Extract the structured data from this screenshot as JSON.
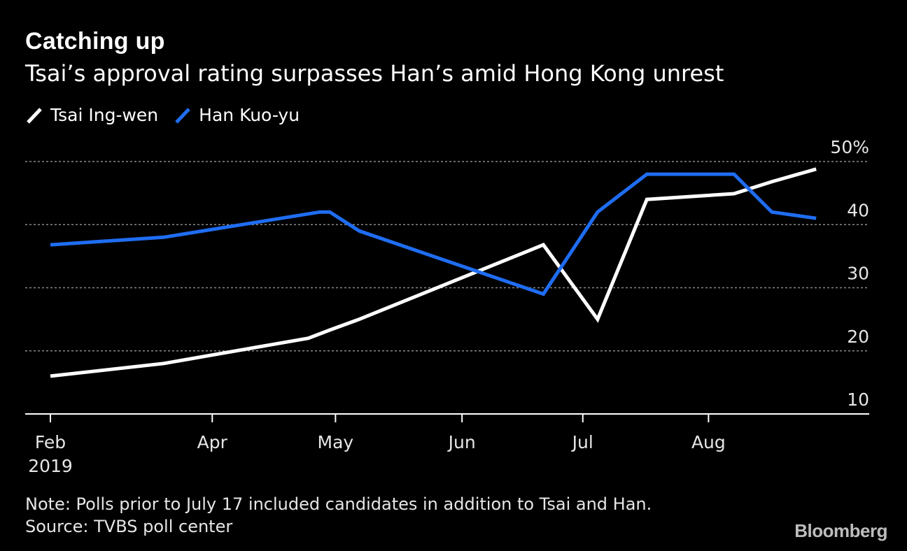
{
  "chart_data": {
    "type": "line",
    "title": "Catching up",
    "subtitle": "Tsai’s approval rating surpasses Han’s amid Hong Kong unrest",
    "x_ticks": [
      {
        "label": "Feb",
        "sublabel": "2019",
        "t": 0
      },
      {
        "label": "Apr",
        "sublabel": "",
        "t": 1.97
      },
      {
        "label": "May",
        "sublabel": "",
        "t": 3.47
      },
      {
        "label": "Jun",
        "sublabel": "",
        "t": 5.01
      },
      {
        "label": "Jul",
        "sublabel": "",
        "t": 6.48
      },
      {
        "label": "Aug",
        "sublabel": "",
        "t": 8.01
      }
    ],
    "x_range": [
      -0.32,
      10.0
    ],
    "y_ticks": [
      {
        "value": 50,
        "label": "50%"
      },
      {
        "value": 40,
        "label": "40"
      },
      {
        "value": 30,
        "label": "30"
      },
      {
        "value": 20,
        "label": "20"
      },
      {
        "value": 10,
        "label": "10"
      }
    ],
    "ylim": [
      10,
      50
    ],
    "grid": true,
    "series": [
      {
        "name": "Tsai Ing-wen",
        "color": "#ffffff",
        "points": [
          [
            0,
            16
          ],
          [
            1.38,
            18
          ],
          [
            3.14,
            22
          ],
          [
            3.4,
            23.3
          ],
          [
            3.76,
            25
          ],
          [
            6.0,
            36.8
          ],
          [
            6.66,
            25
          ],
          [
            7.26,
            44
          ],
          [
            8.32,
            44.9
          ],
          [
            8.78,
            46.8
          ],
          [
            9.32,
            48.8
          ]
        ]
      },
      {
        "name": "Han Kuo-yu",
        "color": "#1f6df2",
        "points": [
          [
            0,
            36.8
          ],
          [
            1.38,
            38
          ],
          [
            3.28,
            42
          ],
          [
            3.4,
            42
          ],
          [
            3.76,
            39
          ],
          [
            6.0,
            29
          ],
          [
            6.66,
            42
          ],
          [
            7.26,
            48
          ],
          [
            8.32,
            48
          ],
          [
            8.78,
            42
          ],
          [
            9.32,
            41
          ]
        ]
      }
    ]
  },
  "notes": {
    "note": "Note: Polls prior to July 17 included candidates in addition to Tsai and Han.",
    "source": "Source: TVBS poll center"
  },
  "brand": "Bloomberg"
}
